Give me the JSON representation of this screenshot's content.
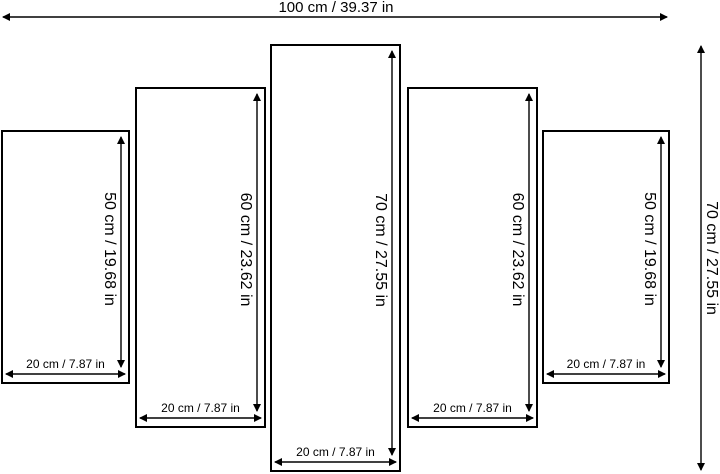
{
  "total_width": "100 cm / 39.37 in",
  "total_height": "70 cm / 27.55 in",
  "panels": [
    {
      "height": "50 cm / 19.68 in",
      "width": "20 cm / 7.87 in"
    },
    {
      "height": "60 cm / 23.62 in",
      "width": "20 cm / 7.87 in"
    },
    {
      "height": "70 cm / 27.55 in",
      "width": "20 cm / 7.87 in"
    },
    {
      "height": "60 cm / 23.62 in",
      "width": "20 cm / 7.87 in"
    },
    {
      "height": "50 cm / 19.68 in",
      "width": "20 cm / 7.87 in"
    }
  ]
}
